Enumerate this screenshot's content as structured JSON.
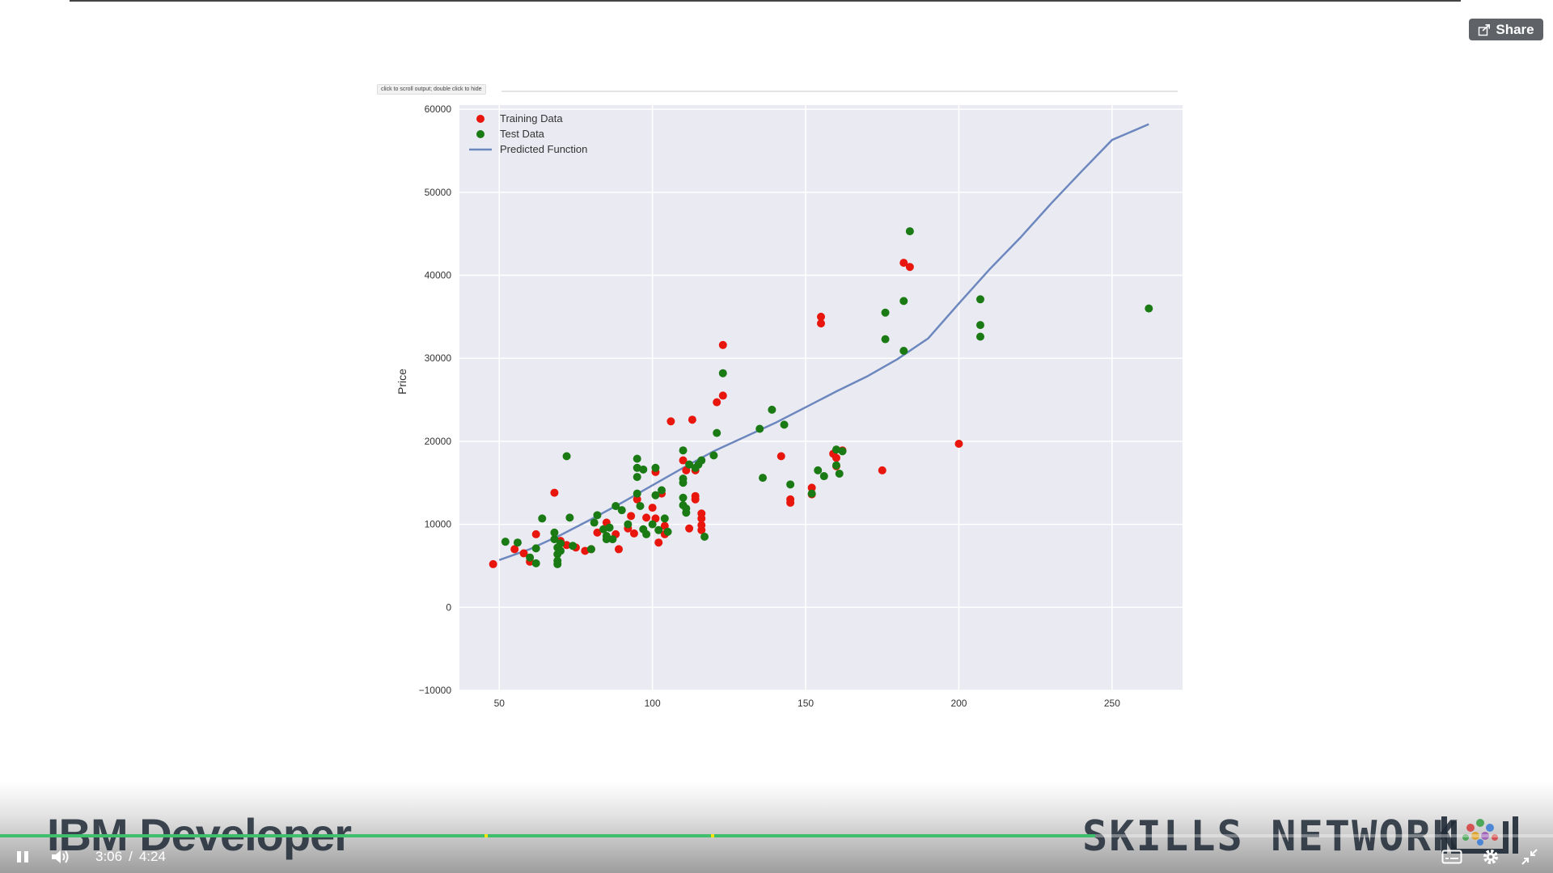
{
  "player": {
    "share_label": "Share",
    "current_time": "3:06",
    "time_separator": "/",
    "duration": "4:24",
    "progress_fraction": 0.705,
    "marker_fractions": [
      0.312,
      0.458
    ],
    "accent_color": "#3fbf6b"
  },
  "notebook": {
    "output_tip": "click to scroll output; double click to hide"
  },
  "branding": {
    "left": "IBM Developer",
    "right": "SKILLS NETWORK"
  },
  "icons": [
    "share-icon",
    "pause-icon",
    "volume-icon",
    "captions-icon",
    "settings-icon",
    "exit-fullscreen-icon"
  ],
  "chart_data": {
    "type": "scatter",
    "title": "",
    "xlabel": "",
    "ylabel": "Price",
    "xlim": [
      37,
      273
    ],
    "ylim": [
      -10000,
      60500
    ],
    "xticks": [
      50,
      100,
      150,
      200,
      250
    ],
    "yticks": [
      -10000,
      0,
      10000,
      20000,
      30000,
      40000,
      50000,
      60000
    ],
    "grid": true,
    "legend_position": "top-left",
    "series": [
      {
        "name": "Training Data",
        "kind": "scatter",
        "color": "#e8160c",
        "points": [
          [
            48,
            5200
          ],
          [
            55,
            7000
          ],
          [
            58,
            6500
          ],
          [
            60,
            5500
          ],
          [
            62,
            8800
          ],
          [
            68,
            13800
          ],
          [
            70,
            8000
          ],
          [
            72,
            7500
          ],
          [
            75,
            7200
          ],
          [
            78,
            6800
          ],
          [
            80,
            7000
          ],
          [
            82,
            9000
          ],
          [
            85,
            10200
          ],
          [
            88,
            8800
          ],
          [
            89,
            7000
          ],
          [
            92,
            9500
          ],
          [
            93,
            11000
          ],
          [
            94,
            8900
          ],
          [
            95,
            13000
          ],
          [
            98,
            10800
          ],
          [
            100,
            12000
          ],
          [
            101,
            16300
          ],
          [
            101,
            10700
          ],
          [
            102,
            7800
          ],
          [
            103,
            13700
          ],
          [
            104,
            8800
          ],
          [
            104,
            9800
          ],
          [
            106,
            22400
          ],
          [
            110,
            17700
          ],
          [
            111,
            16500
          ],
          [
            112,
            9500
          ],
          [
            113,
            22600
          ],
          [
            114,
            16500
          ],
          [
            114,
            13400
          ],
          [
            114,
            13000
          ],
          [
            116,
            11300
          ],
          [
            116,
            10700
          ],
          [
            116,
            9900
          ],
          [
            116,
            9300
          ],
          [
            121,
            24700
          ],
          [
            123,
            25500
          ],
          [
            123,
            31600
          ],
          [
            142,
            18200
          ],
          [
            145,
            13000
          ],
          [
            145,
            12600
          ],
          [
            152,
            14400
          ],
          [
            152,
            13600
          ],
          [
            155,
            35000
          ],
          [
            155,
            34200
          ],
          [
            159,
            18500
          ],
          [
            160,
            18000
          ],
          [
            160,
            17000
          ],
          [
            162,
            18900
          ],
          [
            175,
            16500
          ],
          [
            182,
            41500
          ],
          [
            184,
            41000
          ],
          [
            200,
            19700
          ]
        ]
      },
      {
        "name": "Test Data",
        "kind": "scatter",
        "color": "#1a7a13",
        "points": [
          [
            52,
            7900
          ],
          [
            56,
            7800
          ],
          [
            60,
            6000
          ],
          [
            62,
            7100
          ],
          [
            62,
            5300
          ],
          [
            64,
            10700
          ],
          [
            68,
            9000
          ],
          [
            68,
            8200
          ],
          [
            69,
            7200
          ],
          [
            69,
            6400
          ],
          [
            69,
            5600
          ],
          [
            69,
            5200
          ],
          [
            70,
            7700
          ],
          [
            70,
            6800
          ],
          [
            72,
            18200
          ],
          [
            73,
            10800
          ],
          [
            74,
            7400
          ],
          [
            80,
            7000
          ],
          [
            81,
            10200
          ],
          [
            82,
            11100
          ],
          [
            84,
            9400
          ],
          [
            85,
            8600
          ],
          [
            85,
            8200
          ],
          [
            86,
            9600
          ],
          [
            87,
            8200
          ],
          [
            88,
            12200
          ],
          [
            90,
            11700
          ],
          [
            92,
            10000
          ],
          [
            95,
            17900
          ],
          [
            95,
            16800
          ],
          [
            95,
            15700
          ],
          [
            95,
            13700
          ],
          [
            96,
            12200
          ],
          [
            97,
            16600
          ],
          [
            97,
            9400
          ],
          [
            98,
            8800
          ],
          [
            100,
            10000
          ],
          [
            101,
            16800
          ],
          [
            101,
            13500
          ],
          [
            102,
            9300
          ],
          [
            103,
            14100
          ],
          [
            104,
            10700
          ],
          [
            105,
            9100
          ],
          [
            110,
            18900
          ],
          [
            110,
            15500
          ],
          [
            110,
            15000
          ],
          [
            110,
            13200
          ],
          [
            110,
            12300
          ],
          [
            111,
            11900
          ],
          [
            111,
            11400
          ],
          [
            112,
            17200
          ],
          [
            114,
            16800
          ],
          [
            115,
            17200
          ],
          [
            116,
            17700
          ],
          [
            117,
            8500
          ],
          [
            120,
            18300
          ],
          [
            121,
            21000
          ],
          [
            123,
            28200
          ],
          [
            135,
            21500
          ],
          [
            136,
            15600
          ],
          [
            139,
            23800
          ],
          [
            143,
            22000
          ],
          [
            145,
            14800
          ],
          [
            152,
            13700
          ],
          [
            154,
            16500
          ],
          [
            156,
            15800
          ],
          [
            160,
            19000
          ],
          [
            160,
            17100
          ],
          [
            161,
            16100
          ],
          [
            162,
            18800
          ],
          [
            176,
            35500
          ],
          [
            176,
            32300
          ],
          [
            182,
            36900
          ],
          [
            182,
            30900
          ],
          [
            184,
            45300
          ],
          [
            207,
            37100
          ],
          [
            207,
            34000
          ],
          [
            207,
            32600
          ],
          [
            262,
            36000
          ]
        ]
      },
      {
        "name": "Predicted Function",
        "kind": "line",
        "color": "#6c87be",
        "points": [
          [
            50,
            5700
          ],
          [
            60,
            7000
          ],
          [
            70,
            8700
          ],
          [
            80,
            10600
          ],
          [
            90,
            12600
          ],
          [
            100,
            14700
          ],
          [
            110,
            16800
          ],
          [
            120,
            18800
          ],
          [
            130,
            20500
          ],
          [
            140,
            22200
          ],
          [
            150,
            24100
          ],
          [
            160,
            26000
          ],
          [
            170,
            27800
          ],
          [
            180,
            29900
          ],
          [
            190,
            32400
          ],
          [
            200,
            36600
          ],
          [
            210,
            40700
          ],
          [
            220,
            44500
          ],
          [
            230,
            48600
          ],
          [
            240,
            52500
          ],
          [
            250,
            56300
          ],
          [
            262,
            58200
          ]
        ]
      }
    ]
  }
}
